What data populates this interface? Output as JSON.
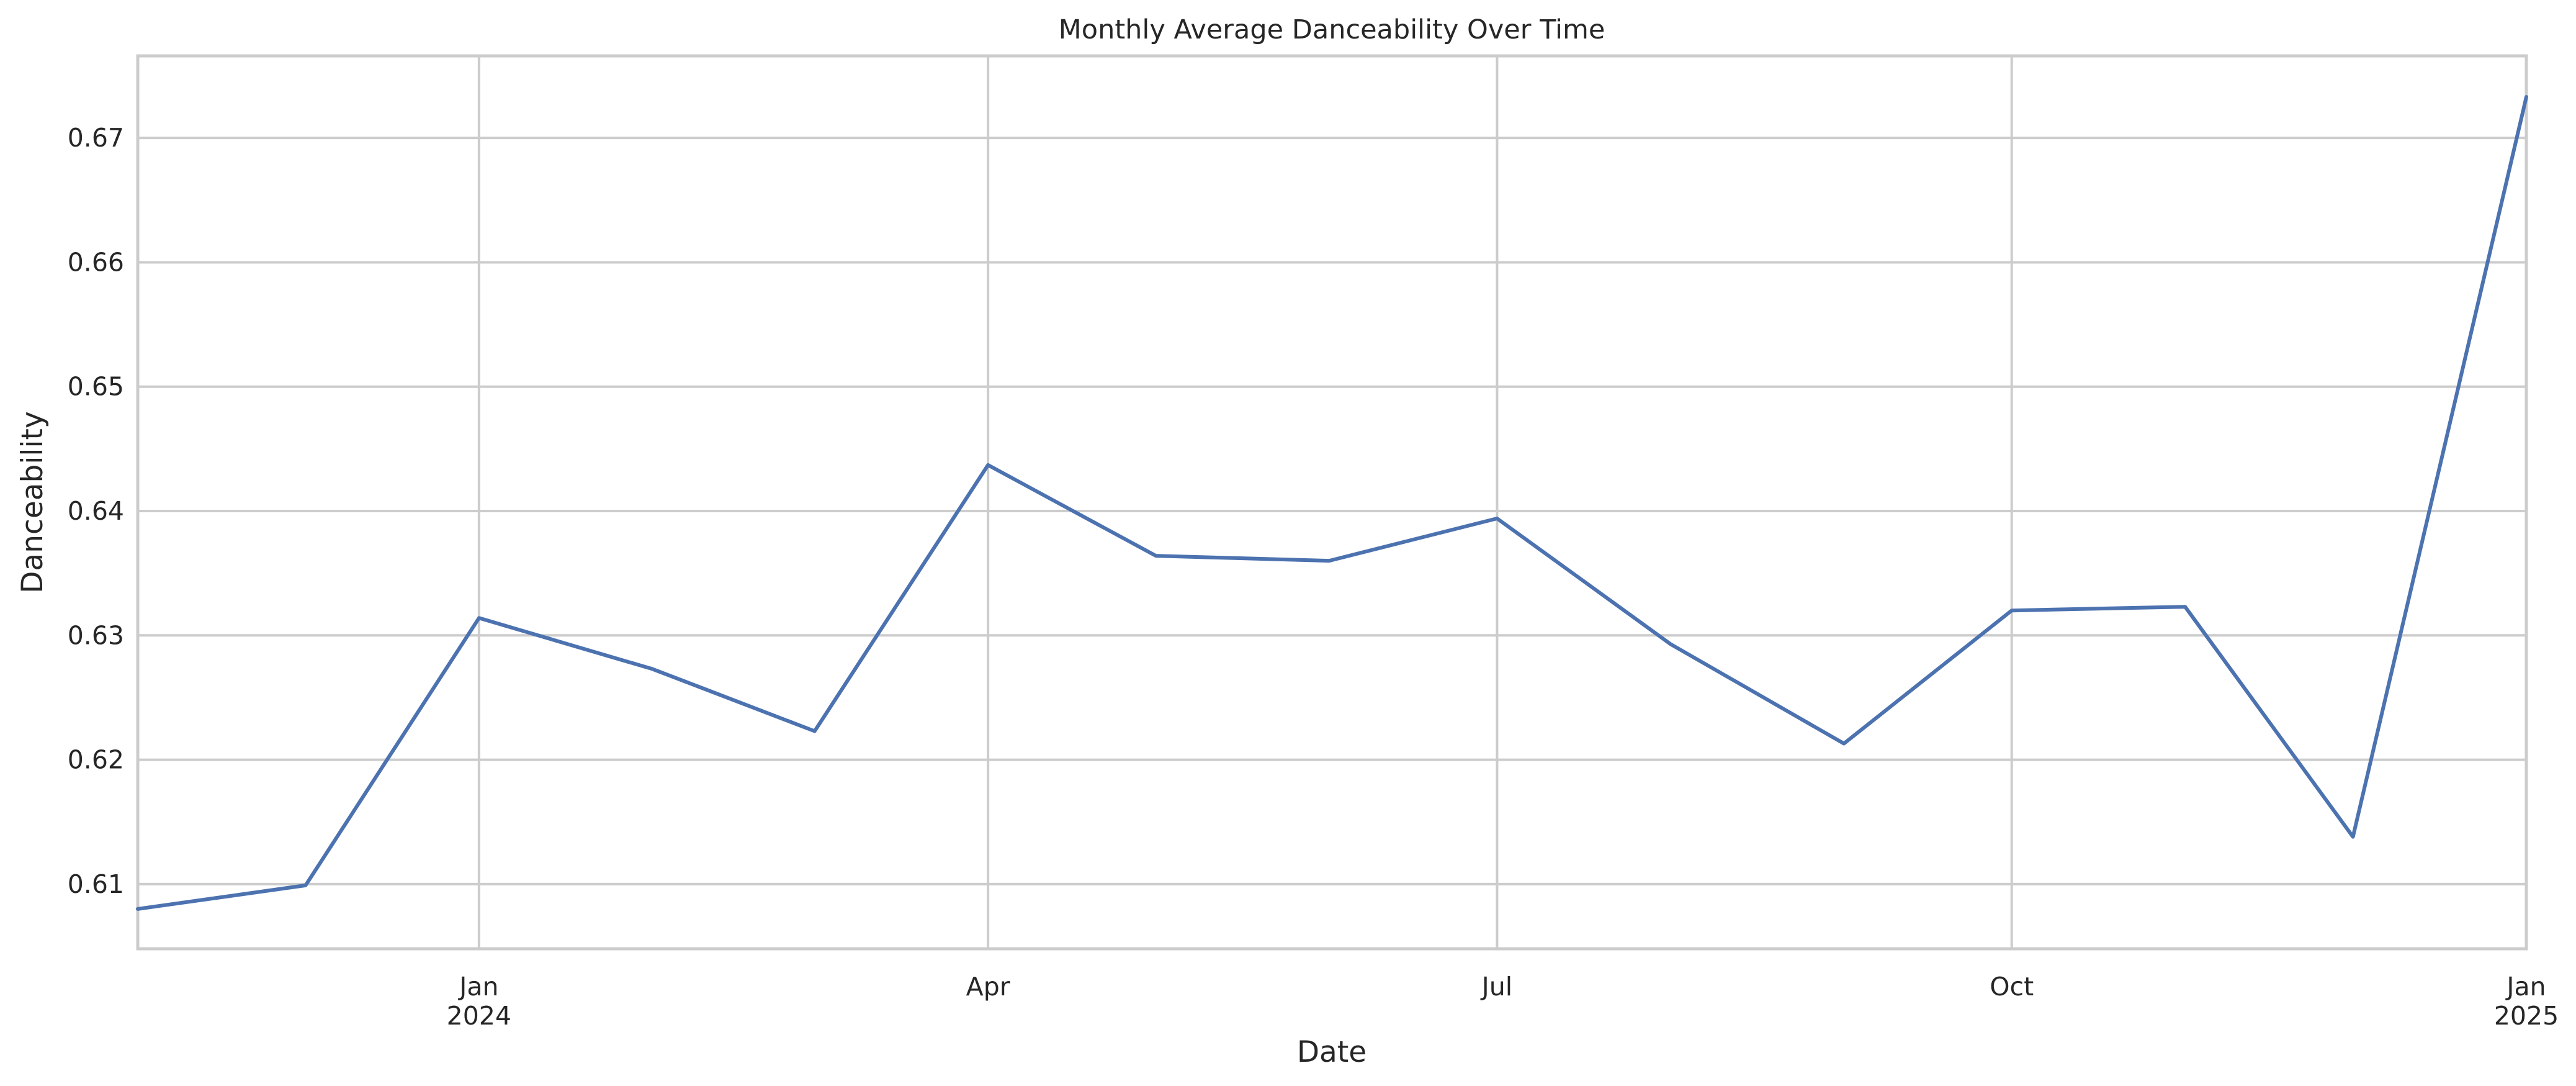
{
  "chart_data": {
    "type": "line",
    "title": "Monthly Average Danceability Over Time",
    "xlabel": "Date",
    "ylabel": "Danceability",
    "x": [
      "2023-11-01",
      "2023-12-01",
      "2024-01-01",
      "2024-02-01",
      "2024-03-01",
      "2024-04-01",
      "2024-05-01",
      "2024-06-01",
      "2024-07-01",
      "2024-08-01",
      "2024-09-01",
      "2024-10-01",
      "2024-11-01",
      "2024-12-01",
      "2025-01-01"
    ],
    "series": [
      {
        "color": "#4c72b0",
        "values": [
          0.608,
          0.6099,
          0.6314,
          0.6273,
          0.6223,
          0.6437,
          0.6364,
          0.636,
          0.6394,
          0.6293,
          0.6213,
          0.632,
          0.6323,
          0.6138,
          0.6733
        ]
      }
    ],
    "xlim": [
      "2023-11-01",
      "2025-01-01"
    ],
    "ylim": [
      0.6048,
      0.6766
    ],
    "x_ticks": [
      {
        "date": "2024-01-01",
        "label": "Jan",
        "sublabel": "2024"
      },
      {
        "date": "2024-04-01",
        "label": "Apr",
        "sublabel": ""
      },
      {
        "date": "2024-07-01",
        "label": "Jul",
        "sublabel": ""
      },
      {
        "date": "2024-10-01",
        "label": "Oct",
        "sublabel": ""
      },
      {
        "date": "2025-01-01",
        "label": "Jan",
        "sublabel": "2025"
      }
    ],
    "y_ticks": [
      {
        "value": 0.61,
        "label": "0.61"
      },
      {
        "value": 0.62,
        "label": "0.62"
      },
      {
        "value": 0.63,
        "label": "0.63"
      },
      {
        "value": 0.64,
        "label": "0.64"
      },
      {
        "value": 0.65,
        "label": "0.65"
      },
      {
        "value": 0.66,
        "label": "0.66"
      },
      {
        "value": 0.67,
        "label": "0.67"
      }
    ],
    "grid": true,
    "grid_color": "#cccccc",
    "frame_color": "#cccccc"
  }
}
